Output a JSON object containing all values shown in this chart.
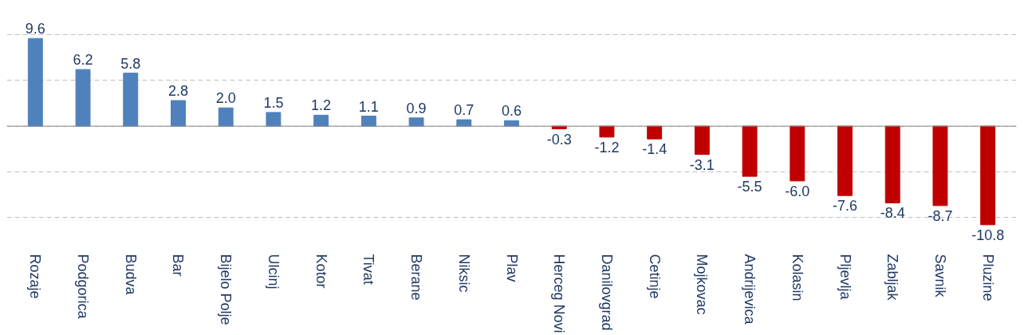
{
  "chart_data": {
    "type": "bar",
    "categories": [
      "Rozaje",
      "Podgorica",
      "Budva",
      "Bar",
      "Bijelo Polje",
      "Ulcinj",
      "Kotor",
      "Tivat",
      "Berane",
      "Niksic",
      "Plav",
      "Herceg Novi",
      "Danilovgrad",
      "Cetinje",
      "Mojkovac",
      "Andrijevica",
      "Kolasin",
      "Pljevlja",
      "Zabljak",
      "Savnik",
      "Pluzine"
    ],
    "values": [
      9.6,
      6.2,
      5.8,
      2.8,
      2.0,
      1.5,
      1.2,
      1.1,
      0.9,
      0.7,
      0.6,
      -0.3,
      -1.2,
      -1.4,
      -3.1,
      -5.5,
      -6.0,
      -7.6,
      -8.4,
      -8.7,
      -10.8
    ],
    "colors": [
      "#4f81bd",
      "#4f81bd",
      "#4f81bd",
      "#4f81bd",
      "#4f81bd",
      "#4f81bd",
      "#4f81bd",
      "#4f81bd",
      "#4f81bd",
      "#4f81bd",
      "#4f81bd",
      "#c00000",
      "#c00000",
      "#c00000",
      "#c00000",
      "#c00000",
      "#c00000",
      "#c00000",
      "#c00000",
      "#c00000",
      "#c00000"
    ],
    "value_labels": [
      "9.6",
      "6.2",
      "5.8",
      "2.8",
      "2.0",
      "1.5",
      "1.2",
      "1.1",
      "0.9",
      "0.7",
      "0.6",
      "-0.3",
      "-1.2",
      "-1.4",
      "-3.1",
      "-5.5",
      "-6.0",
      "-7.6",
      "-8.4",
      "-8.7",
      "-10.8"
    ],
    "tick_labels": "x",
    "grid": "y"
  }
}
